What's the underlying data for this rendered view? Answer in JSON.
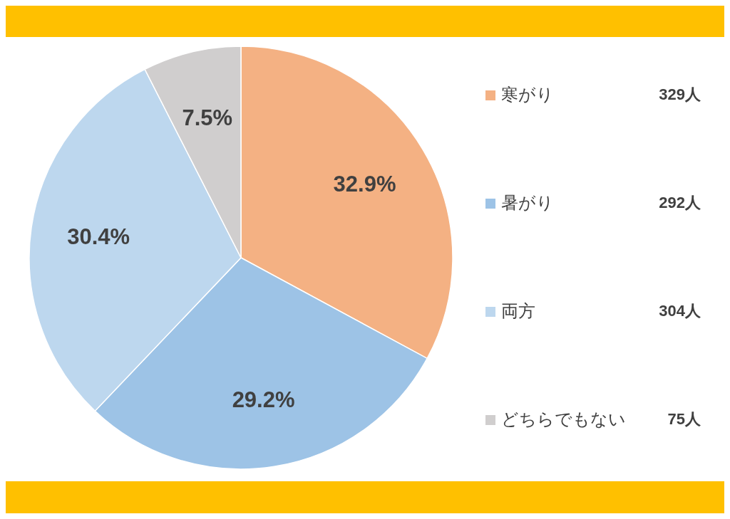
{
  "chart_data": {
    "type": "pie",
    "categories": [
      "寒がり",
      "暑がり",
      "両方",
      "どちらでもない"
    ],
    "values": [
      32.9,
      29.2,
      30.4,
      7.5
    ],
    "value_labels": [
      "32.9%",
      "29.2%",
      "30.4%",
      "7.5%"
    ],
    "colors": [
      "#f4b183",
      "#9dc3e6",
      "#bdd7ee",
      "#d0cece"
    ],
    "annotations": [
      "329人",
      "292人",
      "304人",
      "75人"
    ],
    "legend": "right"
  }
}
